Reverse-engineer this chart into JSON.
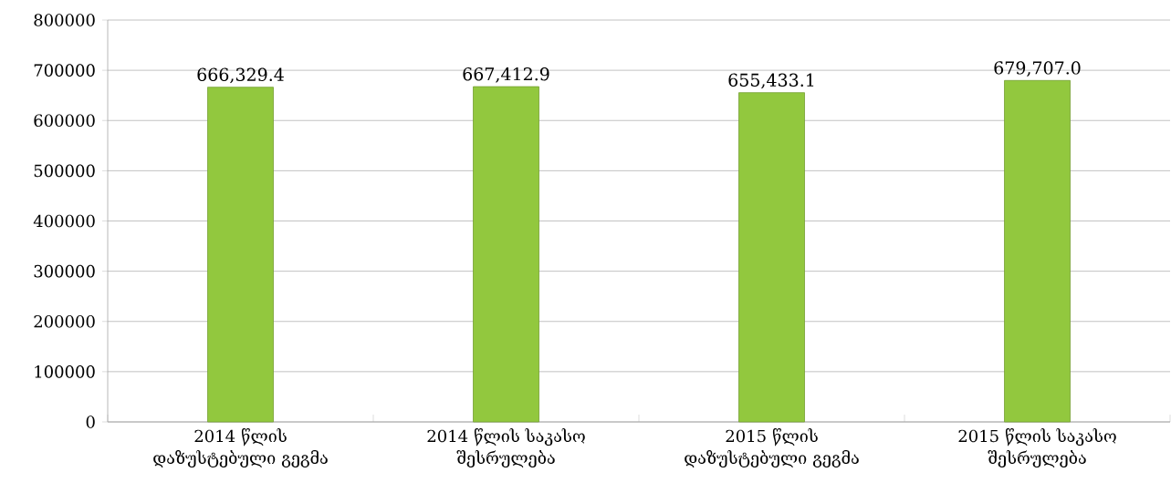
{
  "chart_data": {
    "type": "bar",
    "categories": [
      "2014 წლის დაზუსტებული გეგმა",
      "2014 წლის საკასო შესრულება",
      "2015 წლის დაზუსტებული გეგმა",
      "2015 წლის საკასო შესრულება"
    ],
    "values": [
      666329.4,
      667412.9,
      655433.1,
      679707.0
    ],
    "value_labels": [
      "666,329.4",
      "667,412.9",
      "655,433.1",
      "679,707.0"
    ],
    "color": "#92c83e",
    "ylim": [
      0,
      800000
    ],
    "yticks": [
      0,
      100000,
      200000,
      300000,
      400000,
      500000,
      600000,
      700000,
      800000
    ],
    "grid": "y"
  }
}
